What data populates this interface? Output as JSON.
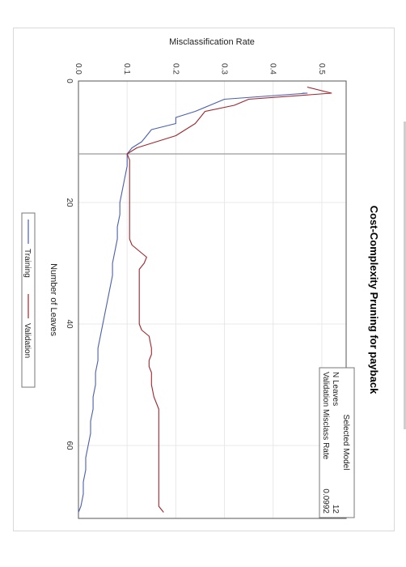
{
  "chart_data": {
    "type": "line",
    "title": "Cost-Complexity Pruning for payback",
    "xlabel": "Number of Leaves",
    "ylabel": "Misclassification Rate",
    "xlim": [
      0,
      72
    ],
    "ylim": [
      0,
      0.55
    ],
    "x_ticks": [
      "0",
      "20",
      "40",
      "60"
    ],
    "y_ticks": [
      "0.0",
      "0.1",
      "0.2",
      "0.3",
      "0.4",
      "0.5"
    ],
    "grid": true,
    "orientation": "rotated-90-clockwise",
    "legend": {
      "placement": "bottom",
      "entries": [
        "Training",
        "Validation"
      ]
    },
    "selected_line_x": 12,
    "series": [
      {
        "name": "Training",
        "color": "#4a5fae",
        "points": [
          [
            2,
            0.46
          ],
          [
            2,
            0.47
          ],
          [
            3,
            0.3
          ],
          [
            4,
            0.27
          ],
          [
            5,
            0.24
          ],
          [
            6,
            0.2
          ],
          [
            7,
            0.2
          ],
          [
            8,
            0.15
          ],
          [
            9,
            0.14
          ],
          [
            10,
            0.13
          ],
          [
            11,
            0.11
          ],
          [
            12,
            0.1
          ],
          [
            14,
            0.1
          ],
          [
            16,
            0.095
          ],
          [
            18,
            0.09
          ],
          [
            20,
            0.085
          ],
          [
            22,
            0.085
          ],
          [
            24,
            0.08
          ],
          [
            26,
            0.08
          ],
          [
            28,
            0.075
          ],
          [
            30,
            0.07
          ],
          [
            32,
            0.07
          ],
          [
            34,
            0.065
          ],
          [
            36,
            0.06
          ],
          [
            38,
            0.055
          ],
          [
            40,
            0.05
          ],
          [
            42,
            0.045
          ],
          [
            44,
            0.04
          ],
          [
            46,
            0.04
          ],
          [
            48,
            0.035
          ],
          [
            50,
            0.035
          ],
          [
            52,
            0.03
          ],
          [
            54,
            0.03
          ],
          [
            56,
            0.025
          ],
          [
            58,
            0.025
          ],
          [
            60,
            0.02
          ],
          [
            62,
            0.015
          ],
          [
            64,
            0.015
          ],
          [
            66,
            0.01
          ],
          [
            68,
            0.01
          ],
          [
            70,
            0.005
          ],
          [
            71,
            0.0
          ]
        ]
      },
      {
        "name": "Validation",
        "color": "#a0262d",
        "points": [
          [
            1,
            0.47
          ],
          [
            2,
            0.52
          ],
          [
            3,
            0.35
          ],
          [
            4,
            0.32
          ],
          [
            5,
            0.26
          ],
          [
            6,
            0.25
          ],
          [
            7,
            0.24
          ],
          [
            8,
            0.22
          ],
          [
            9,
            0.2
          ],
          [
            10,
            0.16
          ],
          [
            11,
            0.12
          ],
          [
            12,
            0.1
          ],
          [
            13,
            0.105
          ],
          [
            14,
            0.105
          ],
          [
            16,
            0.105
          ],
          [
            18,
            0.105
          ],
          [
            20,
            0.105
          ],
          [
            22,
            0.105
          ],
          [
            24,
            0.105
          ],
          [
            26,
            0.105
          ],
          [
            27,
            0.11
          ],
          [
            28,
            0.125
          ],
          [
            29,
            0.14
          ],
          [
            30,
            0.135
          ],
          [
            31,
            0.125
          ],
          [
            32,
            0.125
          ],
          [
            33,
            0.125
          ],
          [
            34,
            0.125
          ],
          [
            36,
            0.125
          ],
          [
            38,
            0.125
          ],
          [
            40,
            0.125
          ],
          [
            41,
            0.13
          ],
          [
            42,
            0.145
          ],
          [
            44,
            0.15
          ],
          [
            45,
            0.15
          ],
          [
            46,
            0.145
          ],
          [
            47,
            0.145
          ],
          [
            48,
            0.15
          ],
          [
            50,
            0.15
          ],
          [
            52,
            0.155
          ],
          [
            54,
            0.165
          ],
          [
            56,
            0.165
          ],
          [
            58,
            0.165
          ],
          [
            60,
            0.165
          ],
          [
            62,
            0.165
          ],
          [
            64,
            0.165
          ],
          [
            66,
            0.165
          ],
          [
            68,
            0.165
          ],
          [
            70,
            0.165
          ],
          [
            71,
            0.175
          ]
        ]
      }
    ],
    "selected_model_box": {
      "header": "Selected Model",
      "rows": [
        {
          "label": "N Leaves",
          "value": "12"
        },
        {
          "label": "Validation Misclass Rate",
          "value": "0.0992"
        }
      ]
    },
    "colors": {
      "grid": "#e8e8e8",
      "frame": "#555555",
      "ref_line": "#9a9a9a"
    }
  }
}
